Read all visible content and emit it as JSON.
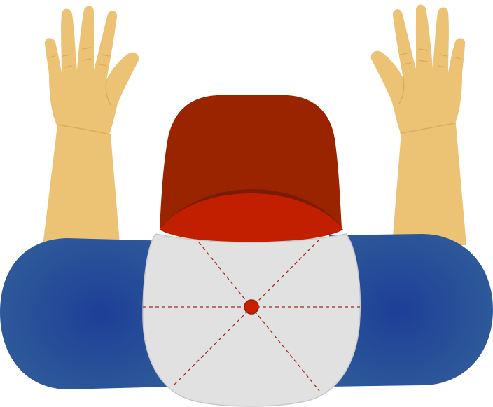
{
  "scene": {
    "subject": "top-view-person-with-raised-hands-and-cap"
  },
  "colors": {
    "background": "#ffffff",
    "skin": "#ECC275",
    "skin_line": "#D9AB5E",
    "sleeve_center": "#1D3F98",
    "sleeve_edge": "#2E5A99",
    "cap_crown_light": "#E1E1E1",
    "cap_crown_stroke": "#C8C8C8",
    "cap_seam": "#A52A1F",
    "cap_button": "#C62200",
    "cap_button_stroke": "#9B1A00",
    "cap_band": "#C21F00",
    "cap_visor": "#9A2300",
    "cap_visor_shadow": "#7A1A00"
  },
  "icons": {
    "left_hand": "raised-hand-icon",
    "right_hand": "raised-hand-icon",
    "cap": "baseball-cap-icon"
  }
}
